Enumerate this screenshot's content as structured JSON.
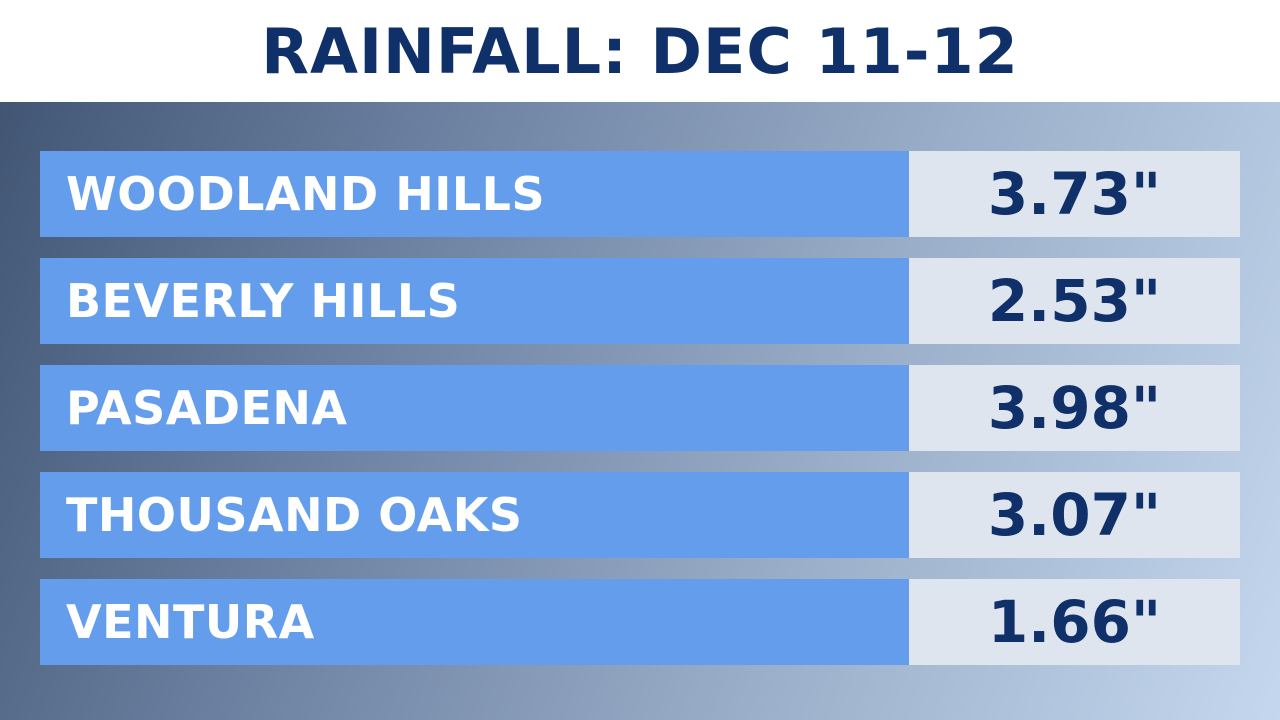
{
  "title": "RAINFALL: DEC 11-12",
  "colors": {
    "title_bar": "#ffffff",
    "title_text": "#10306a",
    "label_cell": "#659ded",
    "value_cell": "#dfe5ee",
    "value_text": "#10306a"
  },
  "rows": [
    {
      "location": "WOODLAND HILLS",
      "rainfall": "3.73\""
    },
    {
      "location": "BEVERLY HILLS",
      "rainfall": "2.53\""
    },
    {
      "location": "PASADENA",
      "rainfall": "3.98\""
    },
    {
      "location": "THOUSAND OAKS",
      "rainfall": "3.07\""
    },
    {
      "location": "VENTURA",
      "rainfall": "1.66\""
    }
  ]
}
